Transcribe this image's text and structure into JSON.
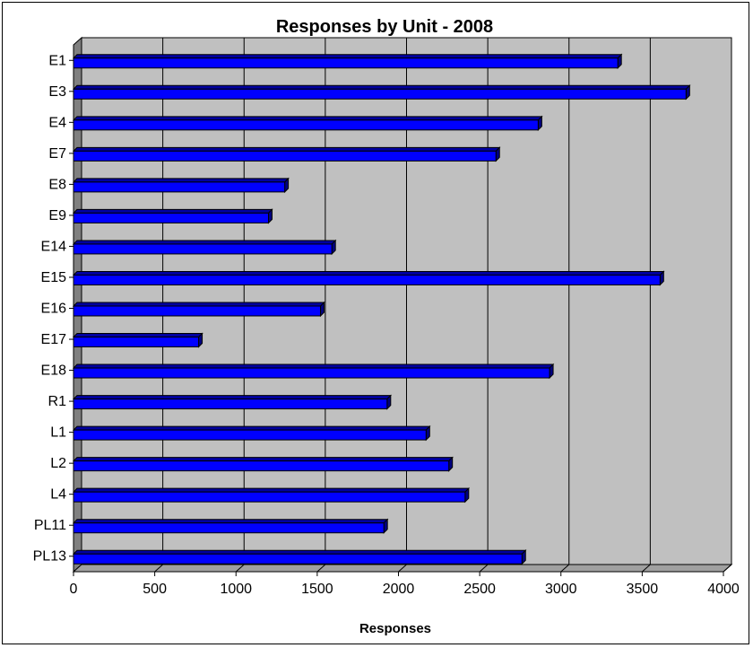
{
  "chart_data": {
    "type": "bar",
    "orientation": "horizontal",
    "title": "Responses by Unit - 2008",
    "xlabel": "Responses",
    "ylabel": "",
    "categories": [
      "E1",
      "E3",
      "E4",
      "E7",
      "E8",
      "E9",
      "E14",
      "E15",
      "E16",
      "E17",
      "E18",
      "R1",
      "L1",
      "L2",
      "L4",
      "PL11",
      "PL13"
    ],
    "values": [
      3350,
      3770,
      2860,
      2600,
      1300,
      1200,
      1590,
      3610,
      1520,
      770,
      2930,
      1930,
      2170,
      2310,
      2410,
      1910,
      2760
    ],
    "xlim": [
      0,
      4000
    ],
    "xticks": [
      0,
      500,
      1000,
      1500,
      2000,
      2500,
      3000,
      3500,
      4000
    ],
    "grid": "vertical",
    "legend": "none",
    "colors": {
      "bar_front": "#0000FF",
      "bar_top": "#0000A0",
      "bar_side": "#000080",
      "plot_back": "#C0C0C0",
      "plot_floor": "#A0A0A0",
      "plot_wall": "#808080"
    }
  }
}
